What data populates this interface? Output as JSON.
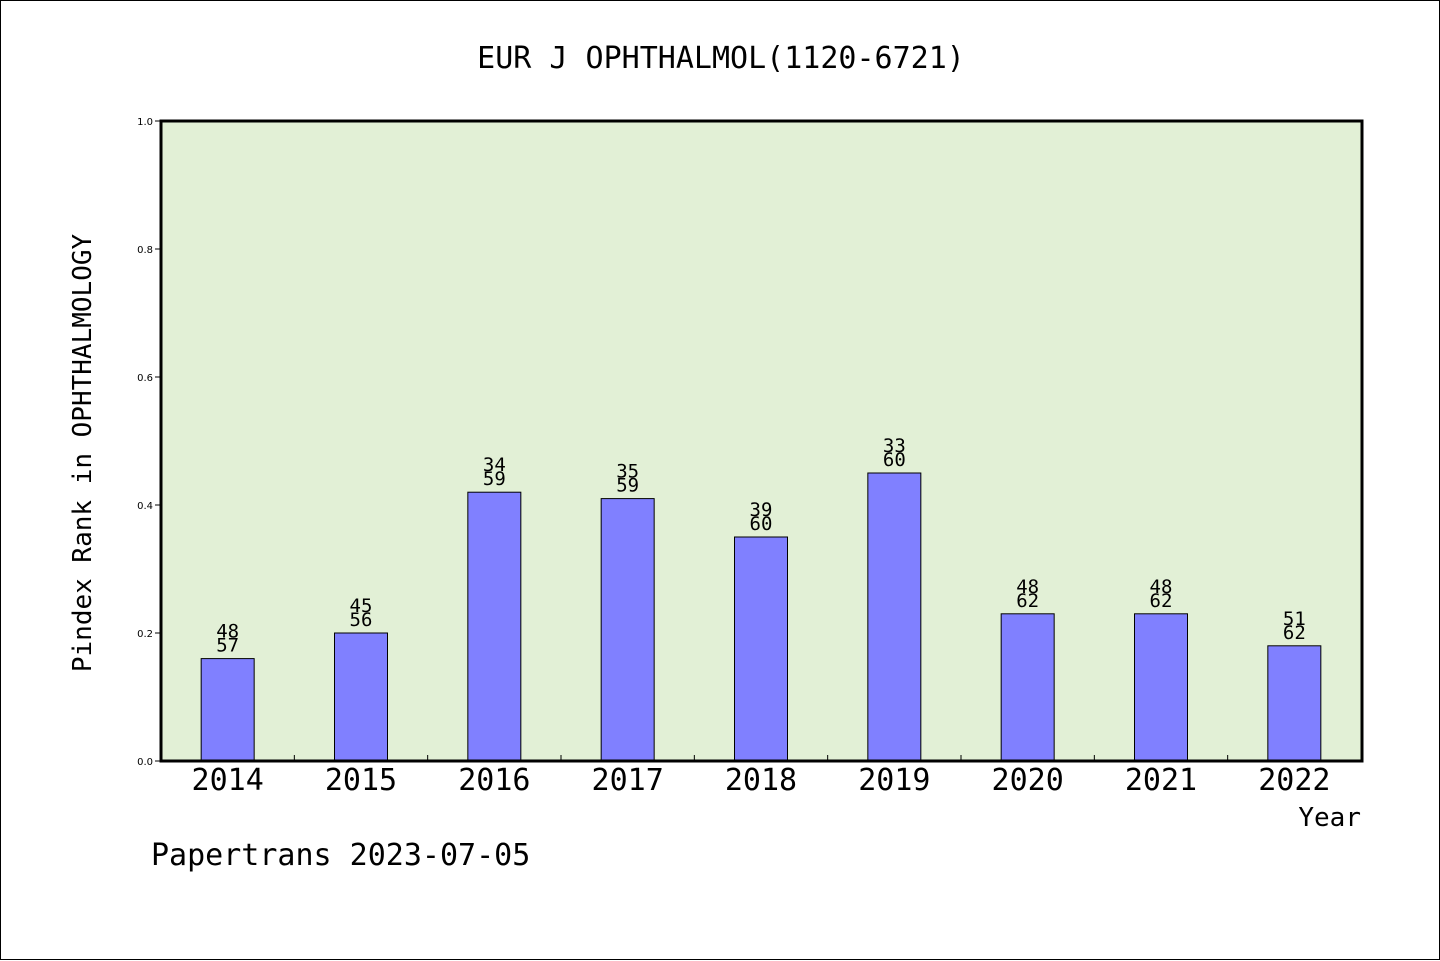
{
  "footer": {
    "watermark": "Papertrans 2023-07-05"
  },
  "colors": {
    "plot_background": "#e2f0d6",
    "bar_fill": "#8080ff",
    "bar_stroke": "#000000",
    "axis": "#000000"
  },
  "chart_data": {
    "type": "bar",
    "title": "EUR J OPHTHALMOL(1120-6721)",
    "xlabel": "Year",
    "ylabel": "Pindex Rank in OPHTHALMOLOGY",
    "ylim": [
      0,
      1.0
    ],
    "yticks": [
      0.0,
      0.2,
      0.4,
      0.6,
      0.8,
      1.0
    ],
    "ytick_labels": [
      "0.0",
      "0.2",
      "0.4",
      "0.6",
      "0.8",
      "1.0"
    ],
    "grid": false,
    "categories": [
      "2014",
      "2015",
      "2016",
      "2017",
      "2018",
      "2019",
      "2020",
      "2021",
      "2022"
    ],
    "values": [
      0.16,
      0.2,
      0.42,
      0.41,
      0.35,
      0.45,
      0.23,
      0.23,
      0.18
    ],
    "labels_top": [
      "48",
      "45",
      "34",
      "35",
      "39",
      "33",
      "48",
      "48",
      "51"
    ],
    "labels_bottom": [
      "57",
      "56",
      "59",
      "59",
      "60",
      "60",
      "62",
      "62",
      "62"
    ]
  }
}
